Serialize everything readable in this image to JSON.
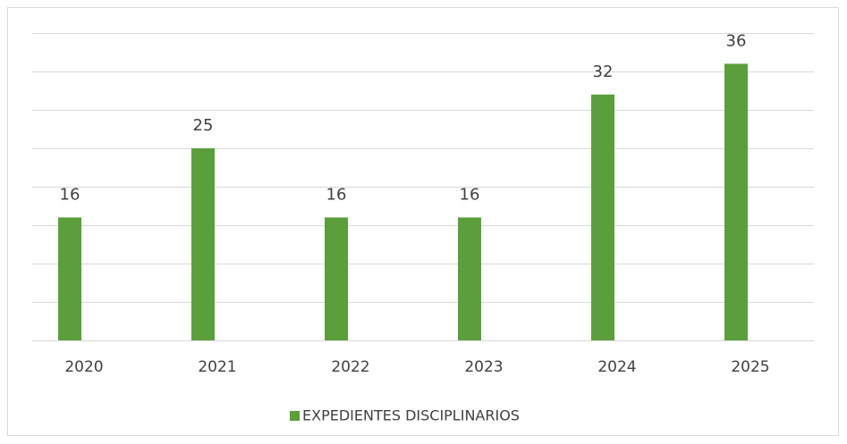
{
  "chart_data": {
    "type": "bar",
    "categories": [
      "2020",
      "2021",
      "2022",
      "2023",
      "2024",
      "2025"
    ],
    "series": [
      {
        "name": "EXPEDIENTES DISCIPLINARIOS",
        "color": "#5b9f3c",
        "values": [
          16,
          25,
          16,
          16,
          32,
          36
        ]
      }
    ],
    "ylim": [
      0,
      40
    ],
    "yticks": [
      0,
      5,
      10,
      15,
      20,
      25,
      30,
      35,
      40
    ],
    "grid": true,
    "legend": "bottom"
  }
}
